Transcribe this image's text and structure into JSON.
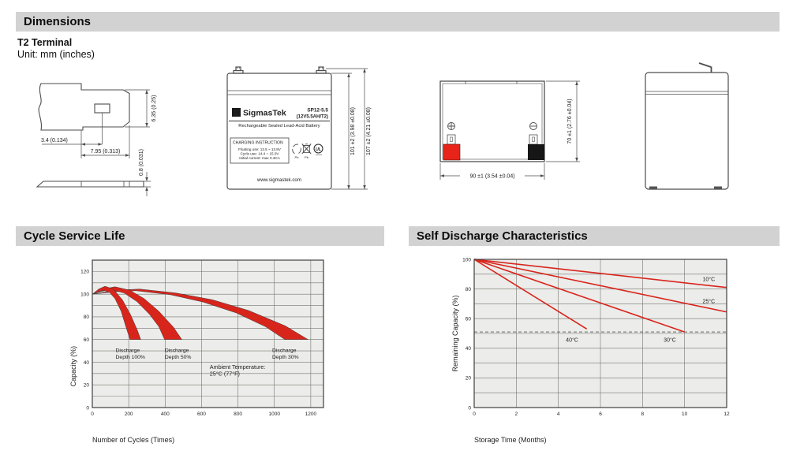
{
  "colors": {
    "header_bg": "#d2d2d2",
    "accent_red": "#d8251c",
    "plot_bg": "#ececea",
    "grid": "#74746f",
    "border": "#3f3f3f",
    "pos_terminal": "#e8231a",
    "neg_terminal": "#161616"
  },
  "headers": {
    "dimensions": "Dimensions",
    "cycle": "Cycle Service Life",
    "self_discharge": "Self Discharge Characteristics"
  },
  "terminal": {
    "type_label": "T2 Terminal",
    "unit_note": "Unit: mm (inches)",
    "dims": {
      "height": "6.35 (0.25)",
      "hole_offset": "3.4 (0.134)",
      "tab_length": "7.95 (0.313)",
      "thickness": "0.8 (0.031)"
    }
  },
  "battery_front": {
    "logo_glyph": "Σ",
    "brand": "SigmasTek",
    "model": "SP12-5.5",
    "spec": "(12V5.5AH/T2)",
    "subtitle": "Rechargeable Sealed Lead-Acid Battery",
    "charging_title": "CHARGING INSTRUCTION",
    "charging_lines": [
      "Floating use: 13.5 ~ 13.8V",
      "Cycle use: 14.4 ~ 15.0V",
      "Initial current: max 0.3CA"
    ],
    "pb_label_1": "Pb",
    "pb_label_2": "Pb",
    "ul_label": "UL",
    "website": "www.sigmastek.com",
    "dim_case_height": "101 ±2 (3.98 ±0.08)",
    "dim_total_height": "107 ±2 (4.21 ±0.08)"
  },
  "battery_top": {
    "dim_width": "90 ±1 (3.54 ±0.04)",
    "dim_depth": "70 ±1 (2.76 ±0.04)"
  },
  "chart_data": [
    {
      "type": "area",
      "title": "Cycle Service Life",
      "xlabel": "Number of Cycles (Times)",
      "ylabel": "Capacity (%)",
      "xlim": [
        0,
        1270
      ],
      "ylim": [
        0,
        130
      ],
      "x_ticks": [
        0,
        200,
        400,
        600,
        800,
        1000,
        1200
      ],
      "y_ticks": [
        0,
        20,
        40,
        60,
        80,
        100,
        120
      ],
      "x_grid": [
        200,
        400,
        600,
        800,
        1000,
        1200
      ],
      "y_grid": [
        10,
        20,
        30,
        40,
        50,
        60,
        70,
        80,
        90,
        100,
        110,
        120
      ],
      "grid_on": true,
      "band_color": "#d8251c",
      "bands": [
        {
          "name": "Discharge Depth 30%",
          "upper": [
            [
              0,
              100
            ],
            [
              130,
              103.5
            ],
            [
              260,
              104.5
            ],
            [
              460,
              101
            ],
            [
              660,
              95
            ],
            [
              860,
              85.5
            ],
            [
              1060,
              72
            ],
            [
              1185,
              60
            ]
          ],
          "lower": [
            [
              0,
              100
            ],
            [
              115,
              102
            ],
            [
              240,
              103
            ],
            [
              430,
              99.5
            ],
            [
              610,
              93
            ],
            [
              790,
              83.5
            ],
            [
              950,
              71.5
            ],
            [
              1058,
              60
            ]
          ]
        },
        {
          "name": "Discharge Depth 50%",
          "upper": [
            [
              0,
              100
            ],
            [
              60,
              104.5
            ],
            [
              125,
              106.5
            ],
            [
              205,
              103.5
            ],
            [
              285,
              96
            ],
            [
              365,
              85
            ],
            [
              445,
              71
            ],
            [
              492,
              60
            ]
          ],
          "lower": [
            [
              0,
              100
            ],
            [
              50,
              102.5
            ],
            [
              105,
              104
            ],
            [
              175,
              101
            ],
            [
              245,
              93.5
            ],
            [
              315,
              82
            ],
            [
              365,
              71.5
            ],
            [
              397,
              60
            ]
          ]
        },
        {
          "name": "Discharge Depth 100%",
          "upper": [
            [
              0,
              100
            ],
            [
              35,
              104.5
            ],
            [
              70,
              107
            ],
            [
              115,
              104.5
            ],
            [
              165,
              95
            ],
            [
              210,
              82
            ],
            [
              248,
              68
            ],
            [
              266,
              60
            ]
          ],
          "lower": [
            [
              0,
              100
            ],
            [
              30,
              102
            ],
            [
              60,
              103.5
            ],
            [
              95,
              101.5
            ],
            [
              125,
              96
            ],
            [
              158,
              85
            ],
            [
              185,
              71
            ],
            [
              207,
              60
            ]
          ]
        }
      ],
      "annotations": [
        {
          "lines": [
            "Discharge",
            "Depth 100%"
          ],
          "x": 128,
          "y": 49,
          "anchor": "start",
          "size": 6.8
        },
        {
          "lines": [
            "Discharge",
            "Depth 50%"
          ],
          "x": 398,
          "y": 49,
          "anchor": "start",
          "size": 6.8
        },
        {
          "lines": [
            "Discharge",
            "Depth 30%"
          ],
          "x": 988,
          "y": 49,
          "anchor": "start",
          "size": 6.8
        },
        {
          "lines": [
            "Ambient Temperature:",
            "25°C (77°F)"
          ],
          "x": 645,
          "y": 34,
          "anchor": "start",
          "size": 7.2
        }
      ],
      "layout": {
        "margins": {
          "l": 97,
          "t": 12,
          "r": 80,
          "b": 51
        },
        "ylabel_frac": 0.72
      }
    },
    {
      "type": "line",
      "title": "Self Discharge Characteristics",
      "xlabel": "Storage Time (Months)",
      "ylabel": "Remaining Capacity (%)",
      "xlim": [
        0,
        12
      ],
      "ylim": [
        0,
        100
      ],
      "x_ticks": [
        0,
        2,
        4,
        6,
        8,
        10,
        12
      ],
      "y_ticks": [
        0,
        20,
        40,
        60,
        80,
        100
      ],
      "x_grid": [
        2,
        4,
        6,
        8,
        10,
        12
      ],
      "y_grid": [
        10,
        20,
        30,
        40,
        50,
        60,
        70,
        80,
        90
      ],
      "grid_on": true,
      "line_color": "#d8251c",
      "series": [
        {
          "name": "10°C",
          "points": [
            [
              0,
              100
            ],
            [
              12,
              81
            ]
          ],
          "label": {
            "x": 11.15,
            "y": 85.5,
            "anchor": "middle"
          }
        },
        {
          "name": "25°C",
          "points": [
            [
              0,
              100
            ],
            [
              12,
              64.5
            ]
          ],
          "label": {
            "x": 11.15,
            "y": 70.5,
            "anchor": "middle"
          }
        },
        {
          "name": "30°C",
          "points": [
            [
              0,
              100
            ],
            [
              10,
              51
            ]
          ],
          "label": {
            "x": 9.3,
            "y": 44.5,
            "anchor": "middle"
          }
        },
        {
          "name": "40°C",
          "points": [
            [
              0,
              100
            ],
            [
              5.35,
              53
            ]
          ],
          "label": {
            "x": 4.65,
            "y": 44.5,
            "anchor": "middle"
          }
        }
      ],
      "dashed_line_y": 51,
      "layout": {
        "margins": {
          "l": 83,
          "t": 11,
          "r": 67,
          "b": 51
        },
        "ylabel_frac": 0.5
      }
    }
  ]
}
